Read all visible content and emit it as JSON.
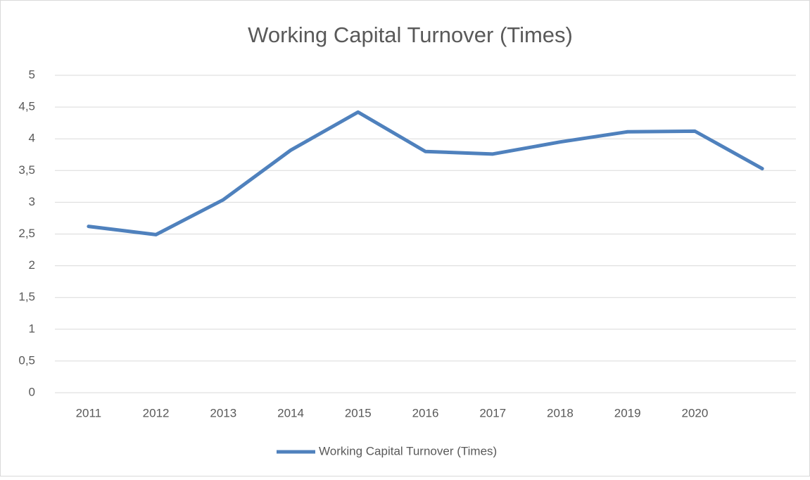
{
  "chart_data": {
    "type": "line",
    "title": "Working Capital Turnover (Times)",
    "categories": [
      "2011",
      "2012",
      "2013",
      "2014",
      "2015",
      "2016",
      "2017",
      "2018",
      "2019",
      "2020",
      null
    ],
    "series": [
      {
        "name": "Working Capital Turnover (Times)",
        "color": "#4f81bd",
        "values": [
          2.62,
          2.49,
          3.04,
          3.82,
          4.42,
          3.8,
          3.76,
          3.95,
          4.11,
          4.12,
          3.53
        ]
      }
    ],
    "ylim": [
      0,
      5
    ],
    "yticks": [
      0,
      {
        "value": 0.5,
        "label": "0,5"
      },
      1,
      {
        "value": 1.5,
        "label": "1,5"
      },
      2,
      {
        "value": 2.5,
        "label": "2,5"
      },
      3,
      {
        "value": 3.5,
        "label": "3,5"
      },
      4,
      {
        "value": 4.5,
        "label": "4,5"
      },
      5
    ],
    "grid": true,
    "legend": "bottom"
  }
}
